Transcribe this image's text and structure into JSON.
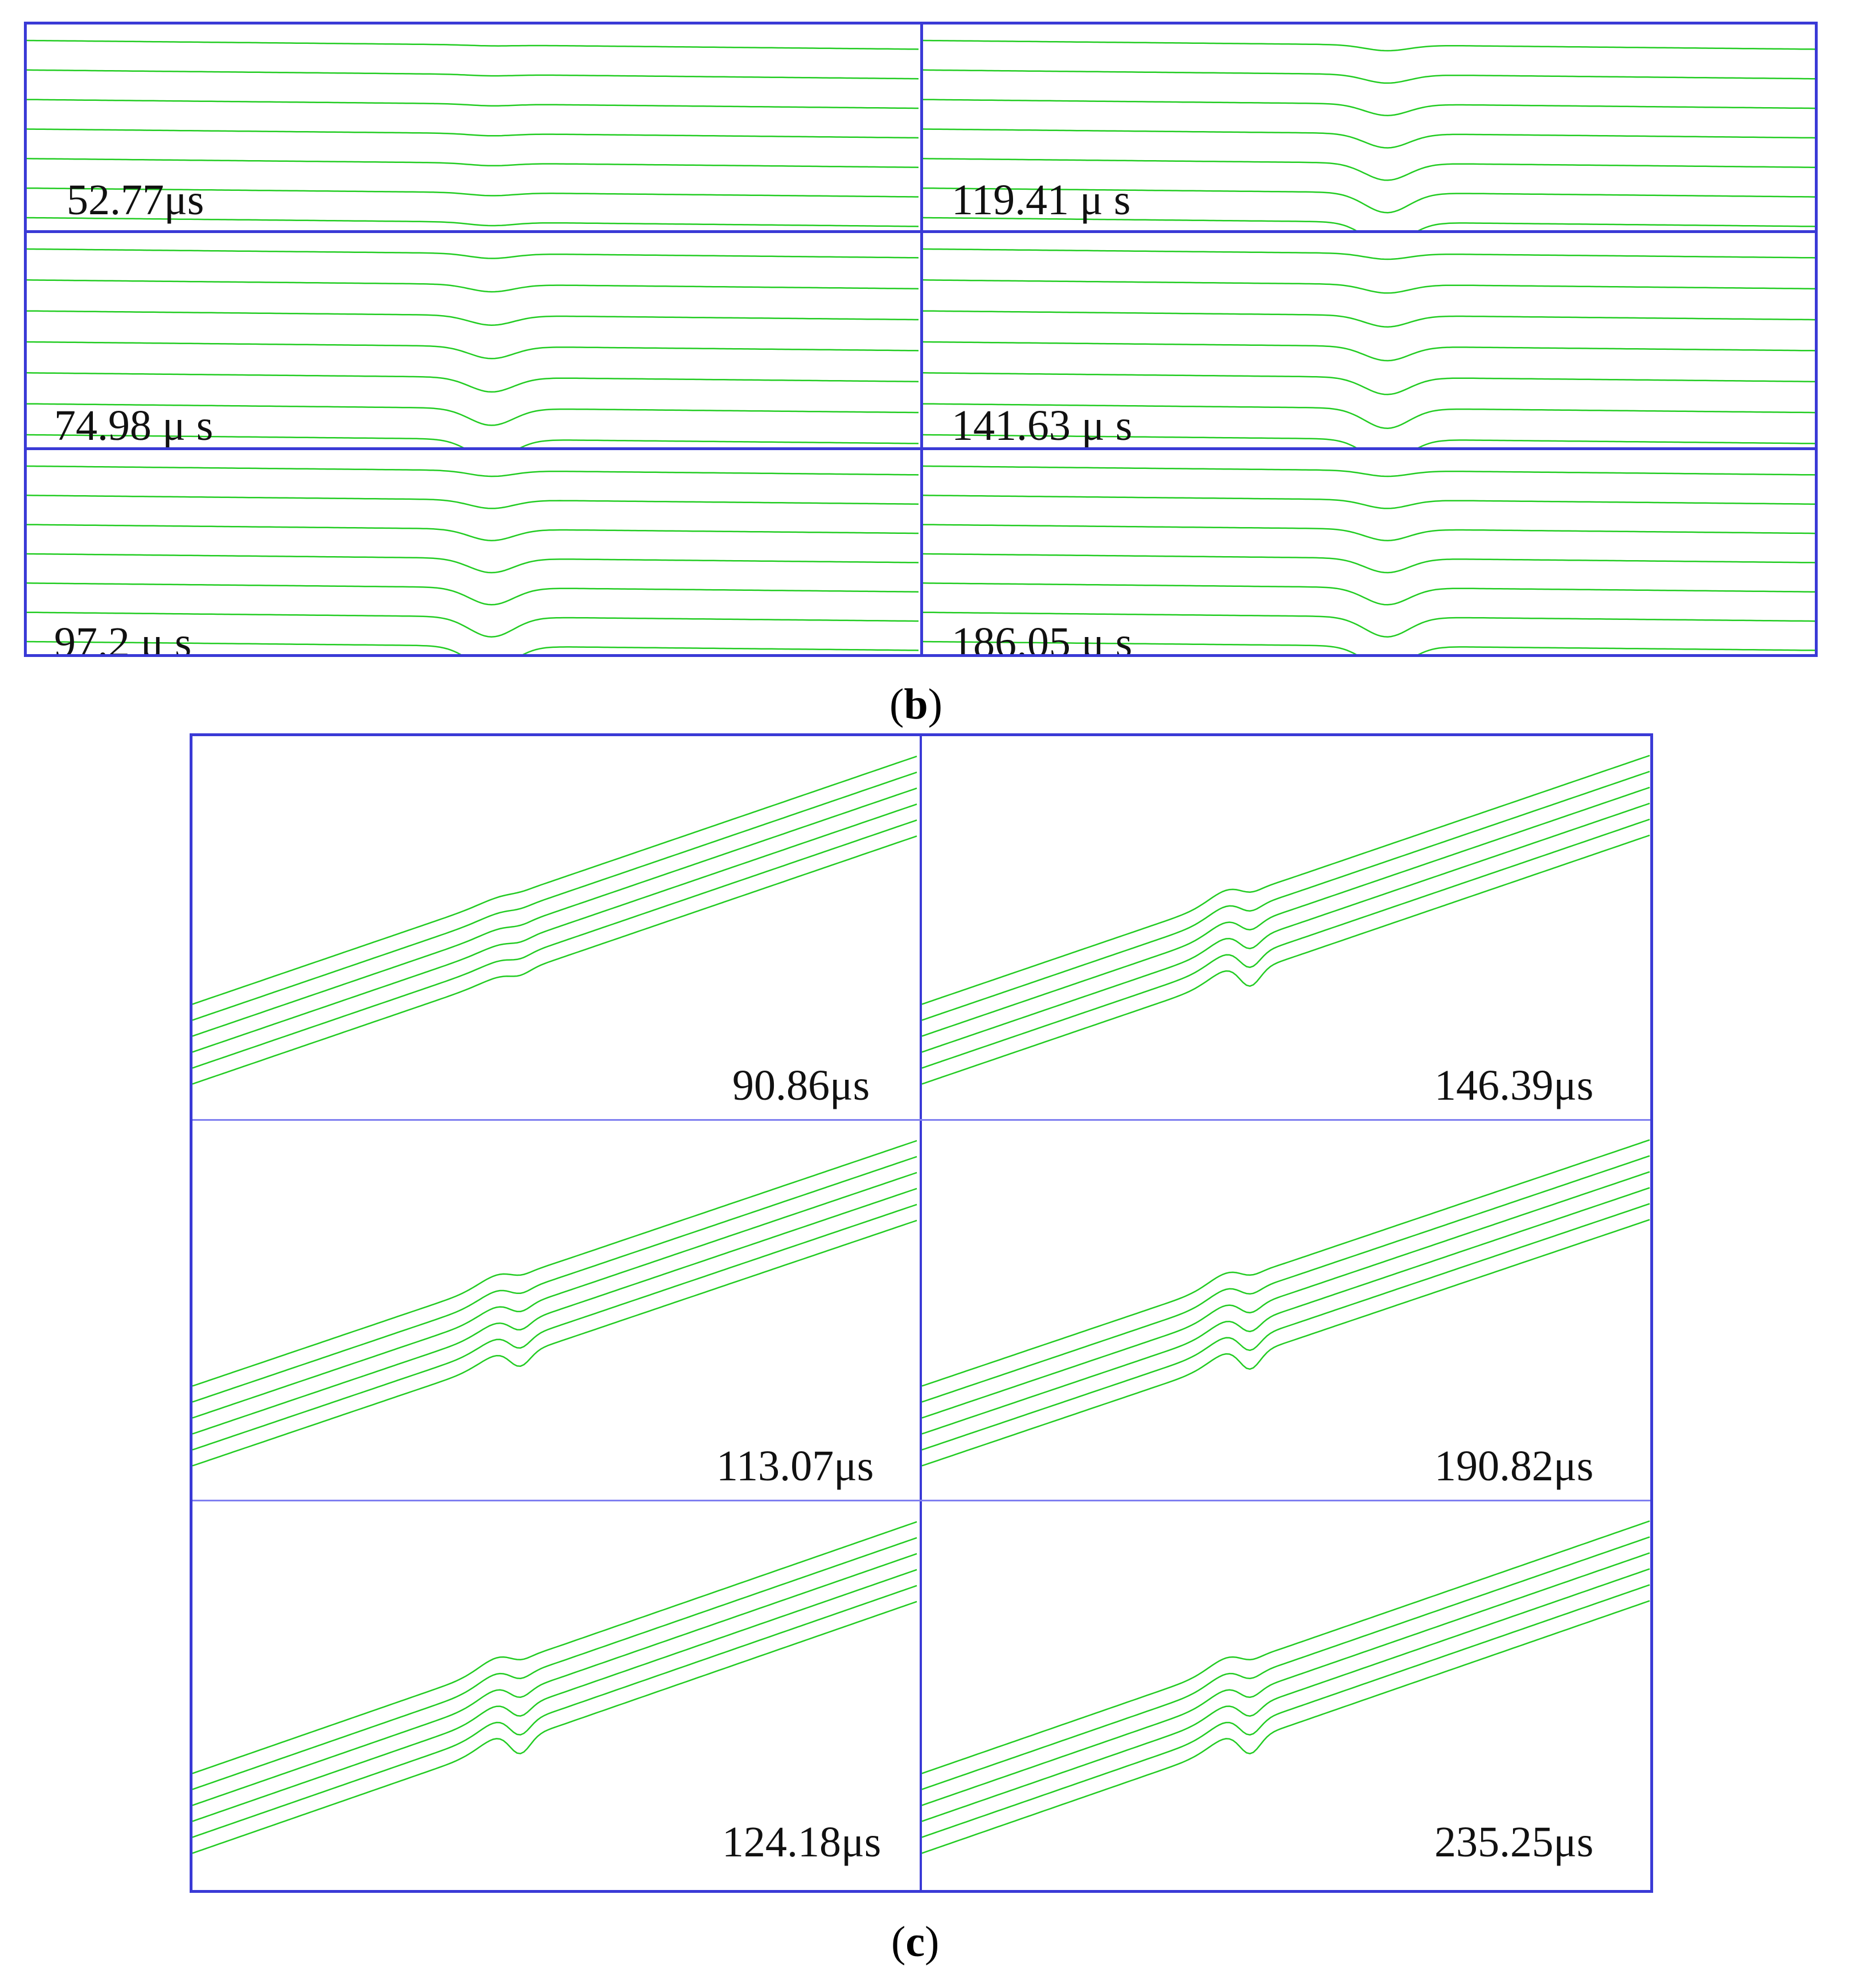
{
  "figure_b": {
    "caption_open": "(",
    "caption_letter": "b",
    "caption_close": ")",
    "panels": [
      {
        "label": "52.77μs",
        "dip": 0.15
      },
      {
        "label": "119.41 μ s",
        "dip": 1.0
      },
      {
        "label": "74.98 μ s",
        "dip": 0.85
      },
      {
        "label": "141.63 μ s",
        "dip": 1.0
      },
      {
        "label": "97.2 μ s",
        "dip": 1.0
      },
      {
        "label": "186.05 μ s",
        "dip": 1.0
      }
    ]
  },
  "figure_c": {
    "caption_open": "(",
    "caption_letter": "c",
    "caption_close": ")",
    "panels": [
      {
        "label": "90.86μs",
        "kink": 0.25
      },
      {
        "label": "146.39μs",
        "kink": 1.0
      },
      {
        "label": "113.07μs",
        "kink": 0.8
      },
      {
        "label": "190.82μs",
        "kink": 1.0
      },
      {
        "label": "124.18μs",
        "kink": 1.0
      },
      {
        "label": "235.25μs",
        "kink": 1.0
      }
    ]
  },
  "colors": {
    "trace": "#22cc22",
    "frame": "#3a3ad6"
  }
}
